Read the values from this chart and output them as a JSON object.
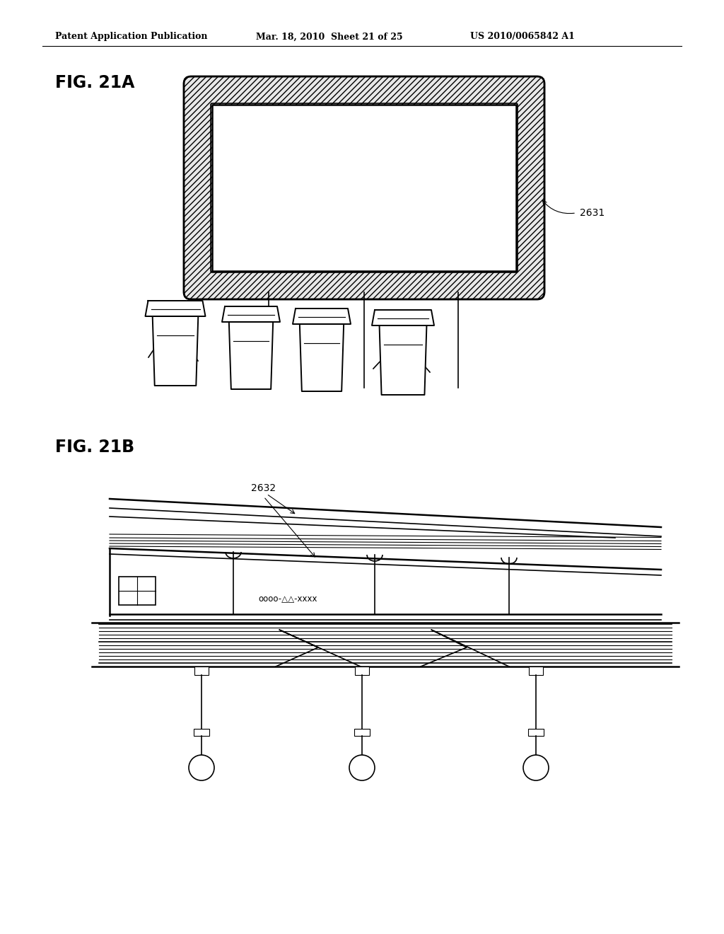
{
  "header_left": "Patent Application Publication",
  "header_mid": "Mar. 18, 2010  Sheet 21 of 25",
  "header_right": "US 2010/0065842 A1",
  "fig_label_a": "FIG. 21A",
  "fig_label_b": "FIG. 21B",
  "ref_2631": "2631",
  "ref_2632": "2632",
  "bg_color": "#ffffff",
  "line_color": "#000000"
}
